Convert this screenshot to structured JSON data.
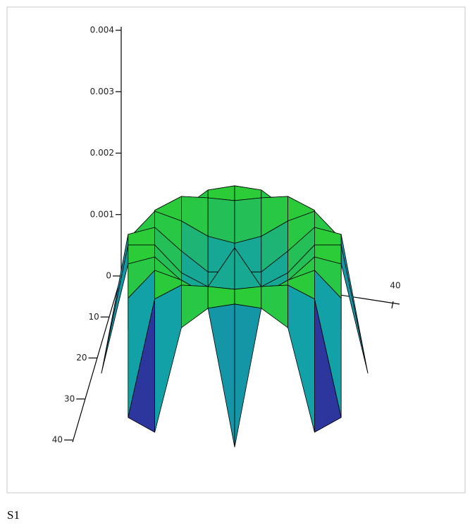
{
  "chart_data": {
    "type": "surface",
    "caption": "S1",
    "x": [
      0,
      4,
      8,
      12,
      16,
      20,
      24,
      28,
      32,
      36,
      40
    ],
    "y": [
      0,
      4,
      8,
      12,
      16,
      20,
      24,
      28,
      32,
      36,
      40
    ],
    "z": [
      [
        null,
        null,
        null,
        null,
        null,
        0,
        null,
        null,
        null,
        null,
        null
      ],
      [
        null,
        null,
        0,
        0.00075,
        0.00089,
        0.00092,
        0.00089,
        0.00075,
        0,
        null,
        null
      ],
      [
        null,
        0,
        0.00085,
        0.00095,
        0.00094,
        0.00092,
        0.00094,
        0.00095,
        0.00085,
        0,
        null
      ],
      [
        null,
        0.00075,
        0.00095,
        0.00088,
        0.00077,
        0.00072,
        0.00077,
        0.00088,
        0.00095,
        0.00075,
        null
      ],
      [
        null,
        0.00089,
        0.00094,
        0.00077,
        0.00062,
        0.00062,
        0.00062,
        0.00077,
        0.00094,
        0.00089,
        null
      ],
      [
        0,
        0.00092,
        0.00092,
        0.00072,
        0.00062,
        0.0009,
        0.00062,
        0.00072,
        0.00092,
        0.00092,
        0
      ],
      [
        null,
        0.00089,
        0.00094,
        0.00077,
        0.00062,
        0.00062,
        0.00062,
        0.00077,
        0.00094,
        0.00089,
        null
      ],
      [
        null,
        0.00075,
        0.00095,
        0.00088,
        0.00077,
        0.00072,
        0.00077,
        0.00088,
        0.00095,
        0.00075,
        null
      ],
      [
        null,
        0,
        0.00085,
        0.00095,
        0.00094,
        0.00092,
        0.00094,
        0.00095,
        0.00085,
        0,
        null
      ],
      [
        null,
        null,
        0,
        0.00075,
        0.00089,
        0.00092,
        0.00089,
        0.00075,
        0,
        null,
        null
      ],
      [
        null,
        null,
        null,
        null,
        null,
        0,
        null,
        null,
        null,
        null,
        null
      ]
    ],
    "xlim": [
      0,
      40
    ],
    "ylim": [
      0,
      40
    ],
    "zlim": [
      0,
      0.004
    ],
    "xticks": [
      0,
      40
    ],
    "yticks": [
      0,
      10,
      20,
      30,
      40
    ],
    "zticks": [
      0.001,
      0.002,
      0.003,
      0.004
    ],
    "colormap": [
      "#4a1486",
      "#2a3aa0",
      "#12a0a8",
      "#2ed12a"
    ],
    "mesh_color": "#000000"
  }
}
